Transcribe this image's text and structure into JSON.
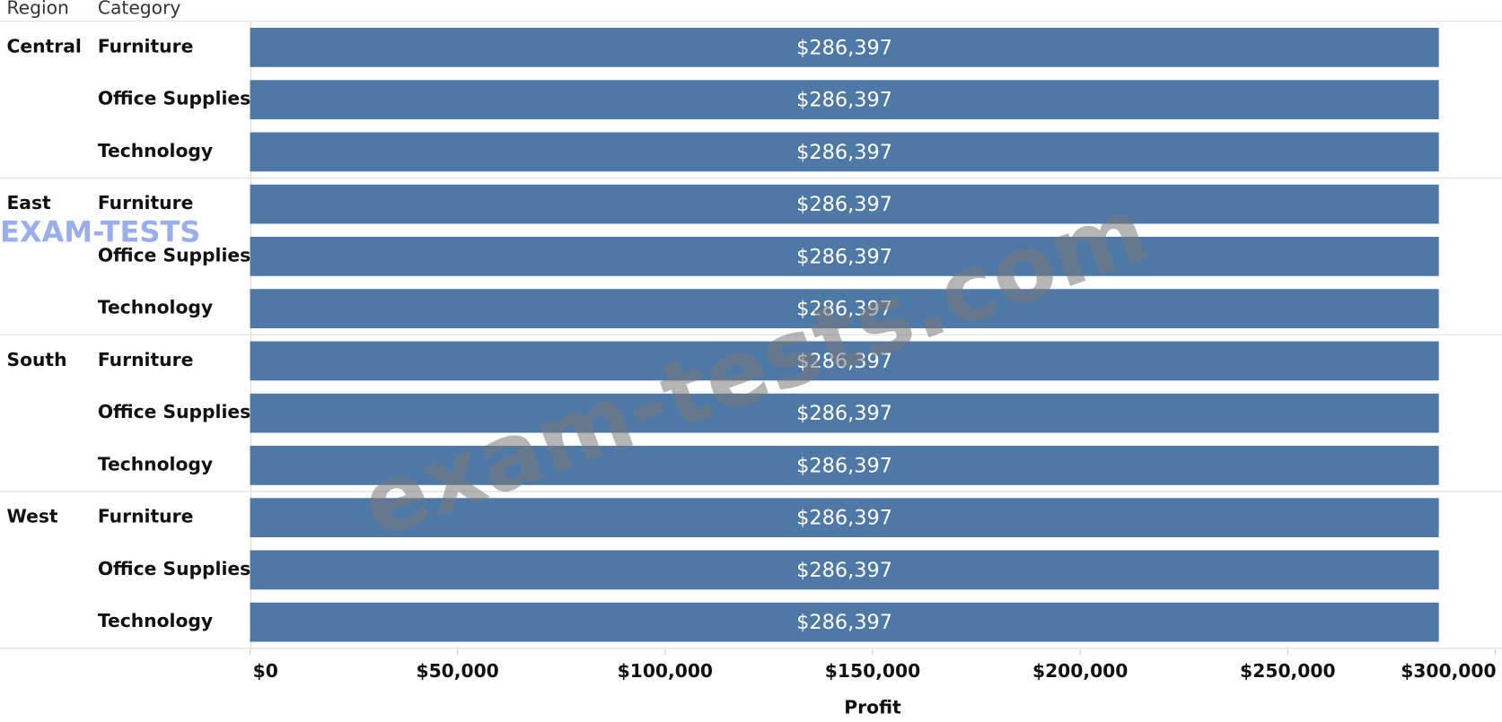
{
  "chart_data": {
    "type": "bar",
    "orientation": "horizontal",
    "row_headers": [
      "Region",
      "Category"
    ],
    "regions": [
      "Central",
      "East",
      "South",
      "West"
    ],
    "categories": [
      "Furniture",
      "Office Supplies",
      "Technology",
      "Furniture",
      "Office Supplies",
      "Technology",
      "Furniture",
      "Office Supplies",
      "Technology",
      "Furniture",
      "Office Supplies",
      "Technology"
    ],
    "values": [
      286397,
      286397,
      286397,
      286397,
      286397,
      286397,
      286397,
      286397,
      286397,
      286397,
      286397,
      286397
    ],
    "value_labels": [
      "$286,397",
      "$286,397",
      "$286,397",
      "$286,397",
      "$286,397",
      "$286,397",
      "$286,397",
      "$286,397",
      "$286,397",
      "$286,397",
      "$286,397",
      "$286,397"
    ],
    "color": "#4e79a7",
    "xlim": [
      0,
      300000
    ],
    "xticks": [
      {
        "value": 0,
        "label": "$0"
      },
      {
        "value": 50000,
        "label": "$50,000"
      },
      {
        "value": 100000,
        "label": "$100,000"
      },
      {
        "value": 150000,
        "label": "$150,000"
      },
      {
        "value": 200000,
        "label": "$200,000"
      },
      {
        "value": 250000,
        "label": "$250,000"
      },
      {
        "value": 300000,
        "label": "$300,000"
      }
    ],
    "x_label": "Profit",
    "annotations": [
      "exam-tests.com",
      "EXAM-TESTS"
    ]
  }
}
